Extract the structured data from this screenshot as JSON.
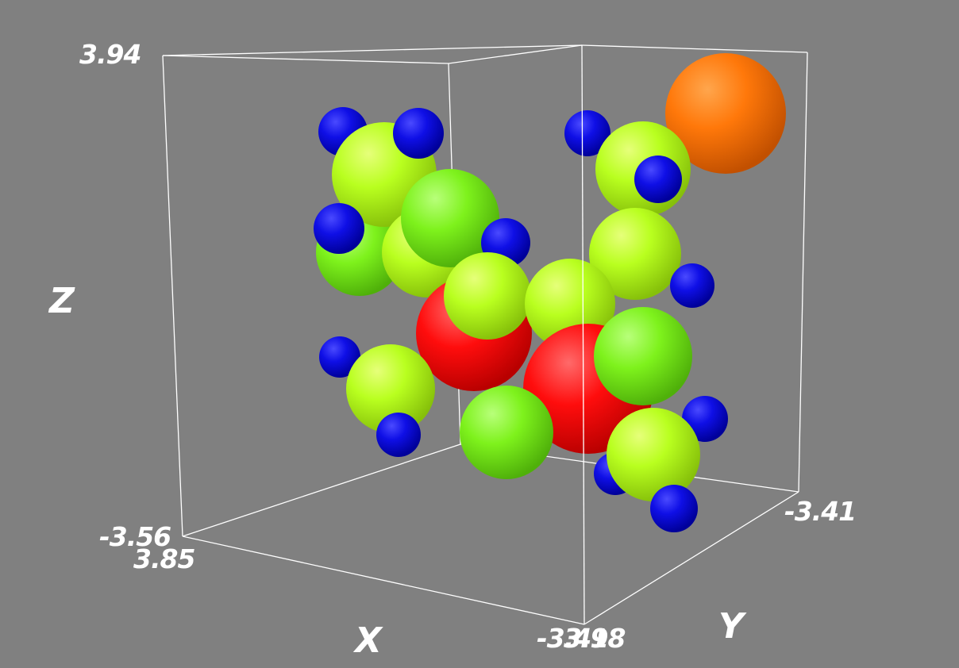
{
  "viewer": {
    "background": "#808080",
    "box_color": "#ffffff",
    "axes": {
      "x": {
        "label": "X",
        "ticks": [
          "3.85",
          "-3.41"
        ]
      },
      "y": {
        "label": "Y",
        "ticks": [
          "-3.41",
          "3.98"
        ]
      },
      "z": {
        "label": "Z",
        "ticks": [
          "3.94",
          "-3.56"
        ]
      }
    },
    "atoms": [
      {
        "name": "hydrogen",
        "color": "#0b0bd6"
      },
      {
        "name": "carbon-yellow",
        "color": "#b3ff1a"
      },
      {
        "name": "carbon-green",
        "color": "#7cf21a"
      },
      {
        "name": "oxygen",
        "color": "#ff0a0a"
      },
      {
        "name": "bromine",
        "color": "#ff7a0a"
      }
    ]
  }
}
